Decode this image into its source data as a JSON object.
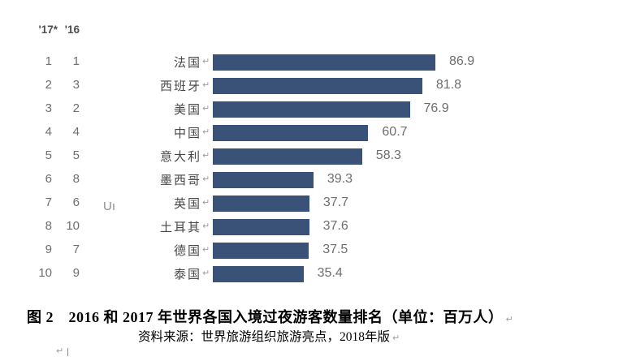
{
  "chart": {
    "header_2017": "'17*",
    "header_2016": "'16",
    "stray_text": "Uı",
    "bar_color": "#3a5278"
  },
  "chart_data": {
    "type": "bar",
    "orientation": "horizontal",
    "title": "2016 和 2017 年世界各国入境过夜游客数量排名",
    "unit": "百万人",
    "categories": [
      "法国",
      "西班牙",
      "美国",
      "中国",
      "意大利",
      "墨西哥",
      "英国",
      "土耳其",
      "德国",
      "泰国"
    ],
    "values": [
      86.9,
      81.8,
      76.9,
      60.7,
      58.3,
      39.3,
      37.7,
      37.6,
      37.5,
      35.4
    ],
    "rank_2017": [
      1,
      2,
      3,
      4,
      5,
      6,
      7,
      8,
      9,
      10
    ],
    "rank_2016": [
      1,
      3,
      2,
      4,
      5,
      8,
      6,
      10,
      7,
      9
    ],
    "xlim": [
      0,
      95
    ],
    "grid": false,
    "legend": false
  },
  "caption": {
    "figure_label": "图 2",
    "title": "图 2　2016 和 2017 年世界各国入境过夜游客数量排名（单位：百万人）",
    "source": "资料来源：世界旅游组织旅游亮点，2018年版"
  },
  "marks": {
    "return": "↵"
  }
}
